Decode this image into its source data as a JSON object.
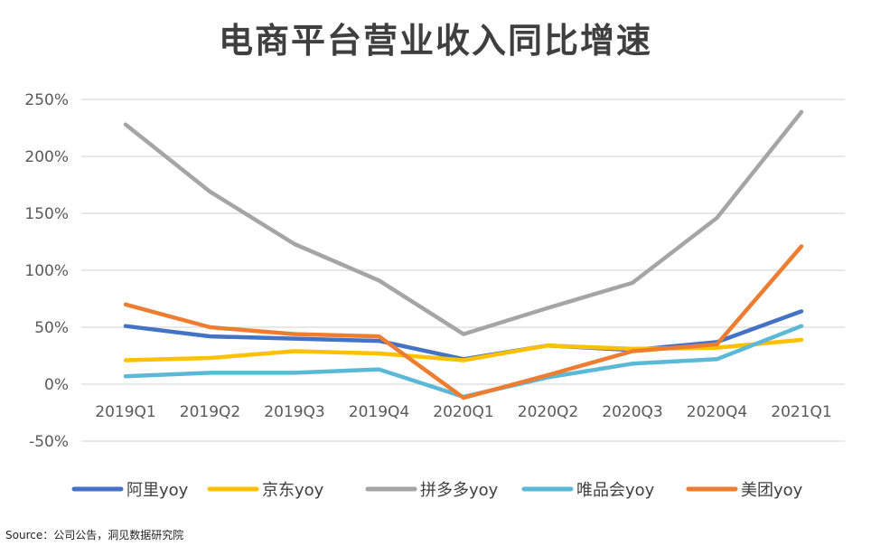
{
  "chart_data": {
    "type": "line",
    "title": "电商平台营业收入同比增速",
    "xlabel": "",
    "ylabel": "",
    "categories": [
      "2019Q1",
      "2019Q2",
      "2019Q3",
      "2019Q4",
      "2020Q1",
      "2020Q2",
      "2020Q3",
      "2020Q4",
      "2021Q1"
    ],
    "y_ticks": [
      "250%",
      "200%",
      "150%",
      "100%",
      "50%",
      "0%",
      "-50%"
    ],
    "ylim": [
      -50,
      250
    ],
    "grid": true,
    "legend_position": "bottom",
    "series": [
      {
        "name": "阿里yoy",
        "color": "#4472C4",
        "values": [
          51,
          42,
          40,
          38,
          22,
          34,
          30,
          37,
          64
        ]
      },
      {
        "name": "京东yoy",
        "color": "#FFC000",
        "values": [
          21,
          23,
          29,
          27,
          21,
          34,
          31,
          32,
          39
        ]
      },
      {
        "name": "拼多多yoy",
        "color": "#A5A5A5",
        "values": [
          228,
          169,
          123,
          91,
          44,
          67,
          89,
          146,
          239
        ]
      },
      {
        "name": "唯品会yoy",
        "color": "#5BB8D6",
        "values": [
          7,
          10,
          10,
          13,
          -11,
          6,
          18,
          22,
          51
        ]
      },
      {
        "name": "美团yoy",
        "color": "#ED7D31",
        "values": [
          70,
          50,
          44,
          42,
          -12,
          8,
          29,
          35,
          121
        ]
      }
    ]
  },
  "source": "Source：公司公告，洞见数据研究院"
}
